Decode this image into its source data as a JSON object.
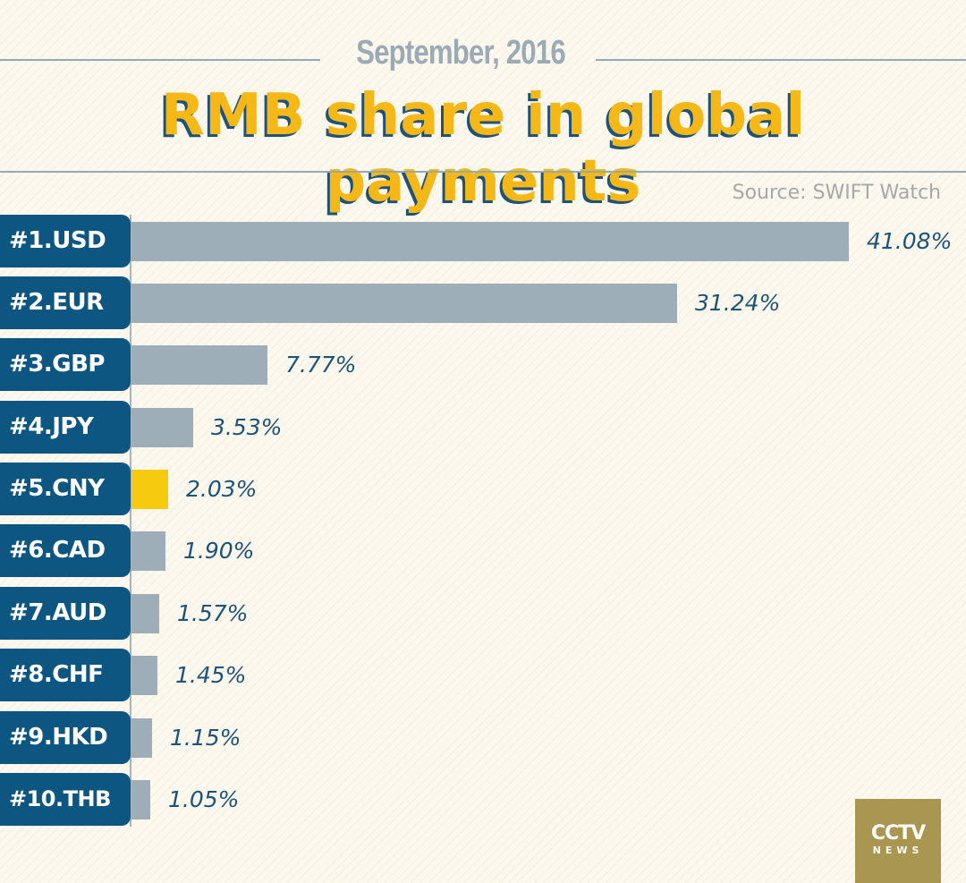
{
  "header": {
    "subtitle": "September, 2016",
    "title": "RMB share in global payments",
    "source": "Source: SWIFT Watch"
  },
  "colors": {
    "background": "#fdf8ee",
    "label_box": "#0d5682",
    "bar_default": "#9eaeb8",
    "bar_highlight": "#f6cb0e",
    "title": "#f6b817",
    "title_shadow": "#1f5277",
    "value_text": "#1c5479",
    "subtitle": "#9aabb5"
  },
  "rows": [
    {
      "label": "#1.USD",
      "value": "41.08%"
    },
    {
      "label": "#2.EUR",
      "value": "31.24%"
    },
    {
      "label": "#3.GBP",
      "value": "7.77%"
    },
    {
      "label": "#4.JPY",
      "value": "3.53%"
    },
    {
      "label": "#5.CNY",
      "value": "2.03%"
    },
    {
      "label": "#6.CAD",
      "value": "1.90%"
    },
    {
      "label": "#7.AUD",
      "value": "1.57%"
    },
    {
      "label": "#8.CHF",
      "value": "1.45%"
    },
    {
      "label": "#9.HKD",
      "value": "1.15%"
    },
    {
      "label": "#10.THB",
      "value": "1.05%"
    }
  ],
  "logo": {
    "line1": "CCTV",
    "line2": "NEWS"
  },
  "chart_data": {
    "type": "bar",
    "orientation": "horizontal",
    "title": "RMB share in global payments",
    "subtitle": "September, 2016",
    "source": "Source: SWIFT Watch",
    "categories": [
      "#1.USD",
      "#2.EUR",
      "#3.GBP",
      "#4.JPY",
      "#5.CNY",
      "#6.CAD",
      "#7.AUD",
      "#8.CHF",
      "#9.HKD",
      "#10.THB"
    ],
    "values": [
      41.08,
      31.24,
      7.77,
      3.53,
      2.03,
      1.9,
      1.57,
      1.45,
      1.15,
      1.05
    ],
    "unit": "%",
    "highlight": "#5.CNY",
    "xlabel": "",
    "ylabel": "",
    "grid": false,
    "legend": null
  }
}
